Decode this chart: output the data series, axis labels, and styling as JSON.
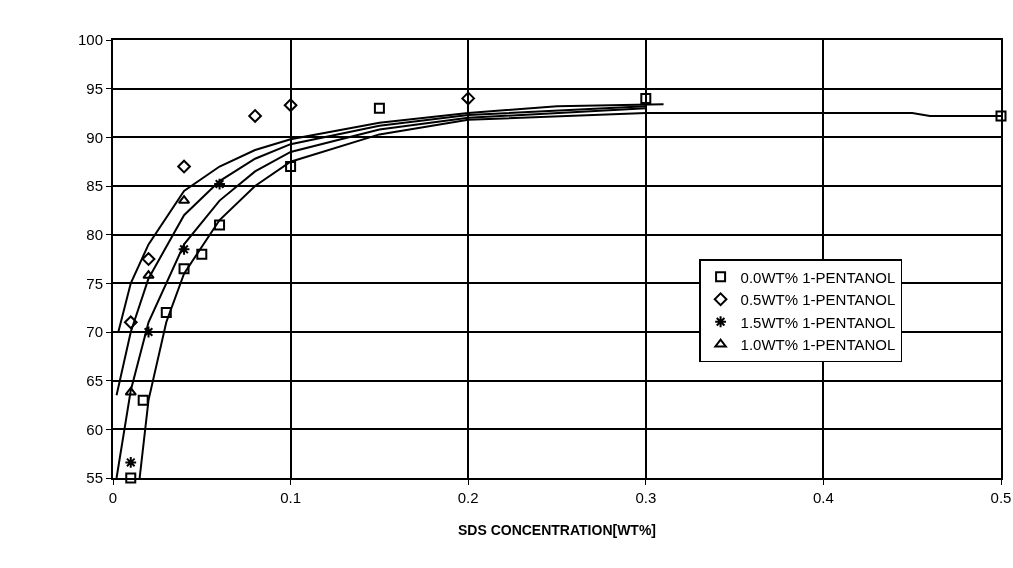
{
  "chart_data": {
    "type": "scatter",
    "xlabel": "SDS CONCENTRATION[WT%]",
    "xlim": [
      0,
      0.5
    ],
    "ylim": [
      55,
      100
    ],
    "xticks": [
      0,
      0.1,
      0.2,
      0.3,
      0.4,
      0.5
    ],
    "yticks": [
      55,
      60,
      65,
      70,
      75,
      80,
      85,
      90,
      95,
      100
    ],
    "grid": true,
    "legend": "right",
    "series": [
      {
        "name": "0.0WT% 1-PENTANOL",
        "color": "#000000",
        "marker": "square",
        "x": [
          0.01,
          0.017,
          0.03,
          0.04,
          0.05,
          0.06,
          0.1,
          0.15,
          0.3,
          0.5
        ],
        "values": [
          55,
          63,
          72,
          76.5,
          78,
          81,
          87,
          93,
          94,
          92.2
        ]
      },
      {
        "name": "0.5WT% 1-PENTANOL",
        "color": "#000000",
        "marker": "diamond",
        "x": [
          0.01,
          0.02,
          0.04,
          0.08,
          0.1,
          0.2
        ],
        "values": [
          71,
          77.5,
          87,
          92.2,
          93.3,
          94
        ]
      },
      {
        "name": "1.5WT% 1-PENTANOL",
        "color": "#000000",
        "marker": "cross",
        "x": [
          0.01,
          0.02,
          0.04,
          0.06
        ],
        "values": [
          56.6,
          70,
          78.5,
          85.2
        ]
      },
      {
        "name": "1.0WT% 1-PENTANOL",
        "color": "#000000",
        "marker": "triangle",
        "x": [
          0.01,
          0.02,
          0.04
        ],
        "values": [
          63.8,
          75.8,
          83.5
        ]
      },
      {
        "type": "line",
        "color": "#000000",
        "marker": "none",
        "x": [
          0.003,
          0.01,
          0.02,
          0.04,
          0.06,
          0.08,
          0.1,
          0.15,
          0.2,
          0.25,
          0.31
        ],
        "values": [
          70,
          75,
          79,
          84.5,
          87,
          88.7,
          89.8,
          91.5,
          92.5,
          93.2,
          93.4
        ]
      },
      {
        "type": "line",
        "color": "#000000",
        "marker": "none",
        "x": [
          0.002,
          0.01,
          0.02,
          0.04,
          0.06,
          0.08,
          0.1,
          0.15,
          0.2,
          0.3
        ],
        "values": [
          63.5,
          70,
          75.5,
          82,
          85.5,
          87.8,
          89.3,
          91.2,
          92.3,
          93.2
        ]
      },
      {
        "type": "line",
        "color": "#000000",
        "marker": "none",
        "x": [
          0.002,
          0.01,
          0.02,
          0.04,
          0.06,
          0.08,
          0.1,
          0.15,
          0.2,
          0.3
        ],
        "values": [
          55,
          64,
          71,
          79,
          83.5,
          86.5,
          88.5,
          90.8,
          92,
          93
        ]
      },
      {
        "type": "line",
        "color": "#000000",
        "marker": "none",
        "x": [
          0.015,
          0.02,
          0.03,
          0.04,
          0.06,
          0.08,
          0.1,
          0.15,
          0.2,
          0.3,
          0.45,
          0.46,
          0.5
        ],
        "values": [
          55,
          63,
          71,
          76,
          81.5,
          85,
          87.5,
          90.3,
          91.8,
          92.5,
          92.5,
          92.2,
          92.2
        ]
      }
    ]
  }
}
